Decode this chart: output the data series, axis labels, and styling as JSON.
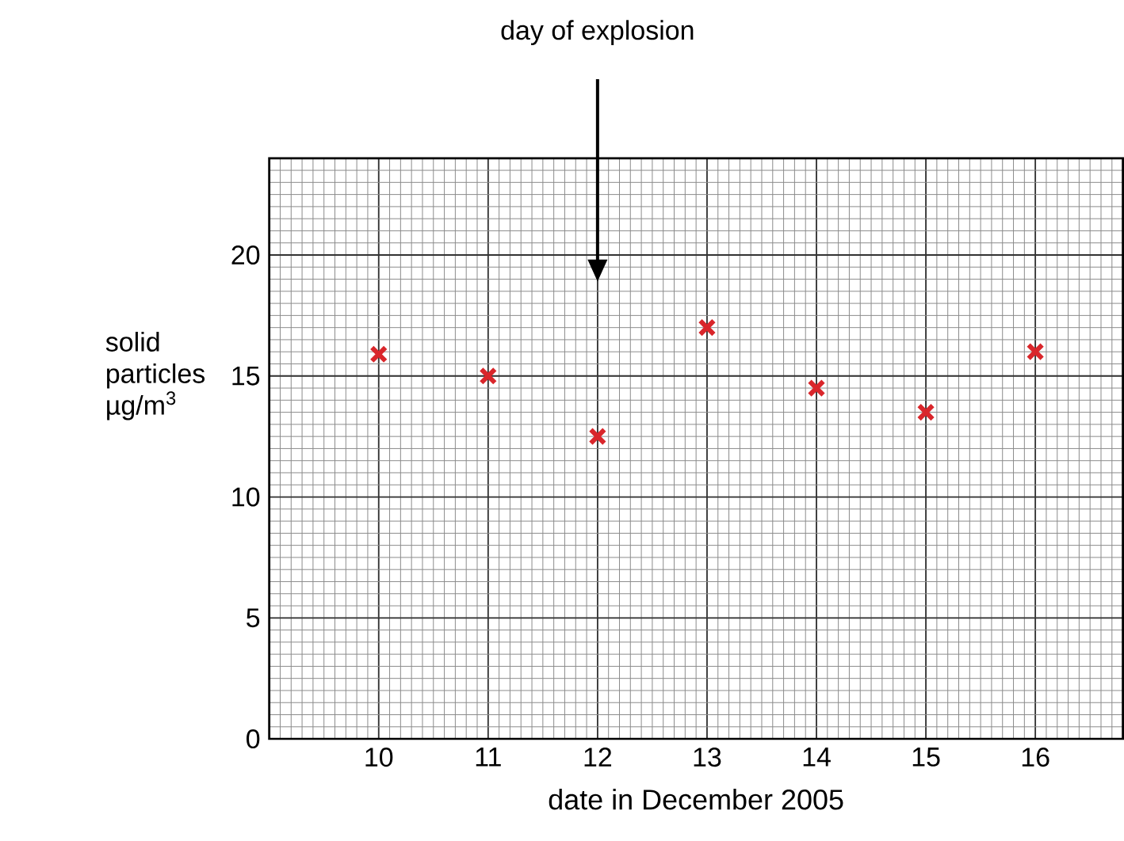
{
  "chart_data": {
    "type": "scatter",
    "xlabel": "date in December 2005",
    "ylabel": "solid particles µg/m$^{3}$",
    "x": [
      10,
      11,
      12,
      13,
      14,
      15,
      16
    ],
    "series": [
      {
        "color": "#d9262b",
        "values": [
          15.9,
          15.0,
          12.5,
          17.0,
          14.5,
          13.5,
          16.0
        ]
      }
    ],
    "xlim": [
      9,
      16.8
    ],
    "ylim": [
      0,
      24
    ],
    "xticks": [
      10,
      11,
      12,
      13,
      14,
      15,
      16
    ],
    "yticks": [
      0,
      5,
      10,
      15,
      20
    ],
    "grid": true,
    "marker": "cross",
    "annotations": [
      "day of explosion"
    ]
  }
}
